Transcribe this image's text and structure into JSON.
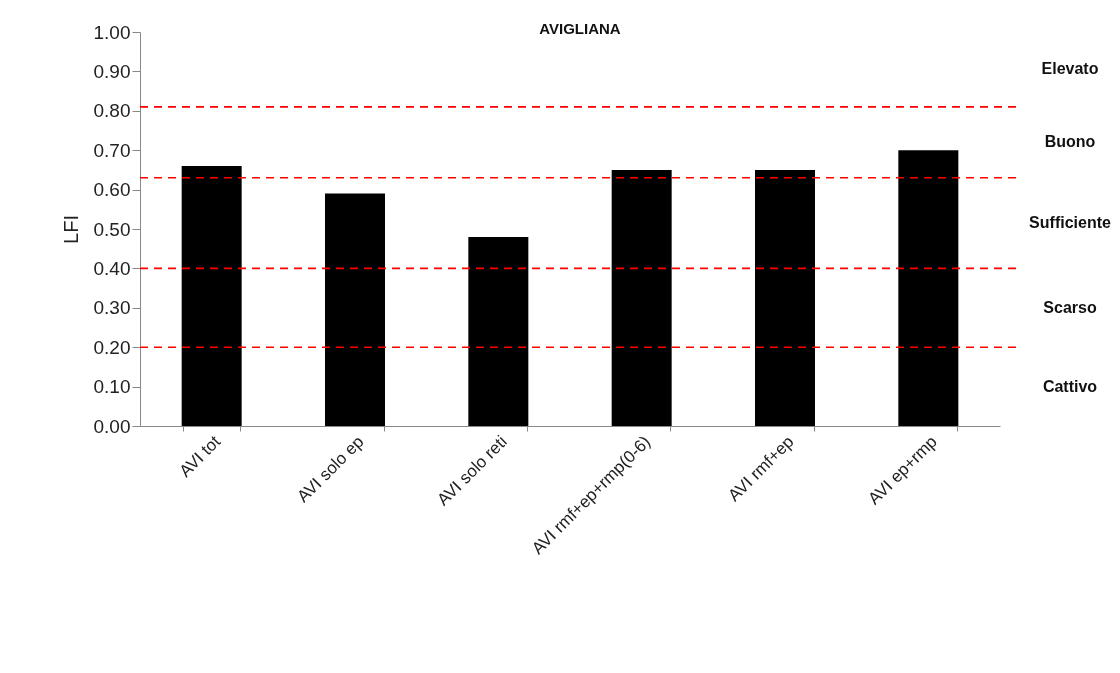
{
  "chart_data": {
    "type": "bar",
    "title": "AVIGLIANA",
    "ylabel": "LFI",
    "categories": [
      "AVI  tot",
      "AVI solo ep",
      "AVI solo reti",
      "AVI rmf+ep+rmp(0-6)",
      "AVI rmf+ep",
      "AVI ep+rmp"
    ],
    "values": [
      0.66,
      0.59,
      0.48,
      0.65,
      0.65,
      0.7
    ],
    "color": "#000000",
    "ylim": [
      0,
      1
    ],
    "yticks": [
      {
        "value": 0,
        "label": "0.00"
      },
      {
        "value": 0.1,
        "label": "0.10"
      },
      {
        "value": 0.2,
        "label": "0.20"
      },
      {
        "value": 0.3,
        "label": "0.30"
      },
      {
        "value": 0.4,
        "label": "0.40"
      },
      {
        "value": 0.5,
        "label": "0.50"
      },
      {
        "value": 0.6,
        "label": "0.60"
      },
      {
        "value": 0.7,
        "label": "0.70"
      },
      {
        "value": 0.8,
        "label": "0.80"
      },
      {
        "value": 0.9,
        "label": "0.90"
      },
      {
        "value": 1,
        "label": "1.00"
      }
    ],
    "grid": false,
    "ref_lines": [
      {
        "axis": "y",
        "value": 0.81,
        "color": "#ff0000",
        "line_style": "dashed"
      },
      {
        "axis": "y",
        "value": 0.63,
        "color": "#ff0000",
        "line_style": "dashed"
      },
      {
        "axis": "y",
        "value": 0.4,
        "color": "#ff0000",
        "line_style": "dashed"
      },
      {
        "axis": "y",
        "value": 0.2,
        "color": "#ff0000",
        "line_style": "dashed"
      }
    ],
    "annotations": [
      "Elevato",
      "Buono",
      "Sufficiente",
      "Scarso",
      "Cattivo"
    ]
  }
}
